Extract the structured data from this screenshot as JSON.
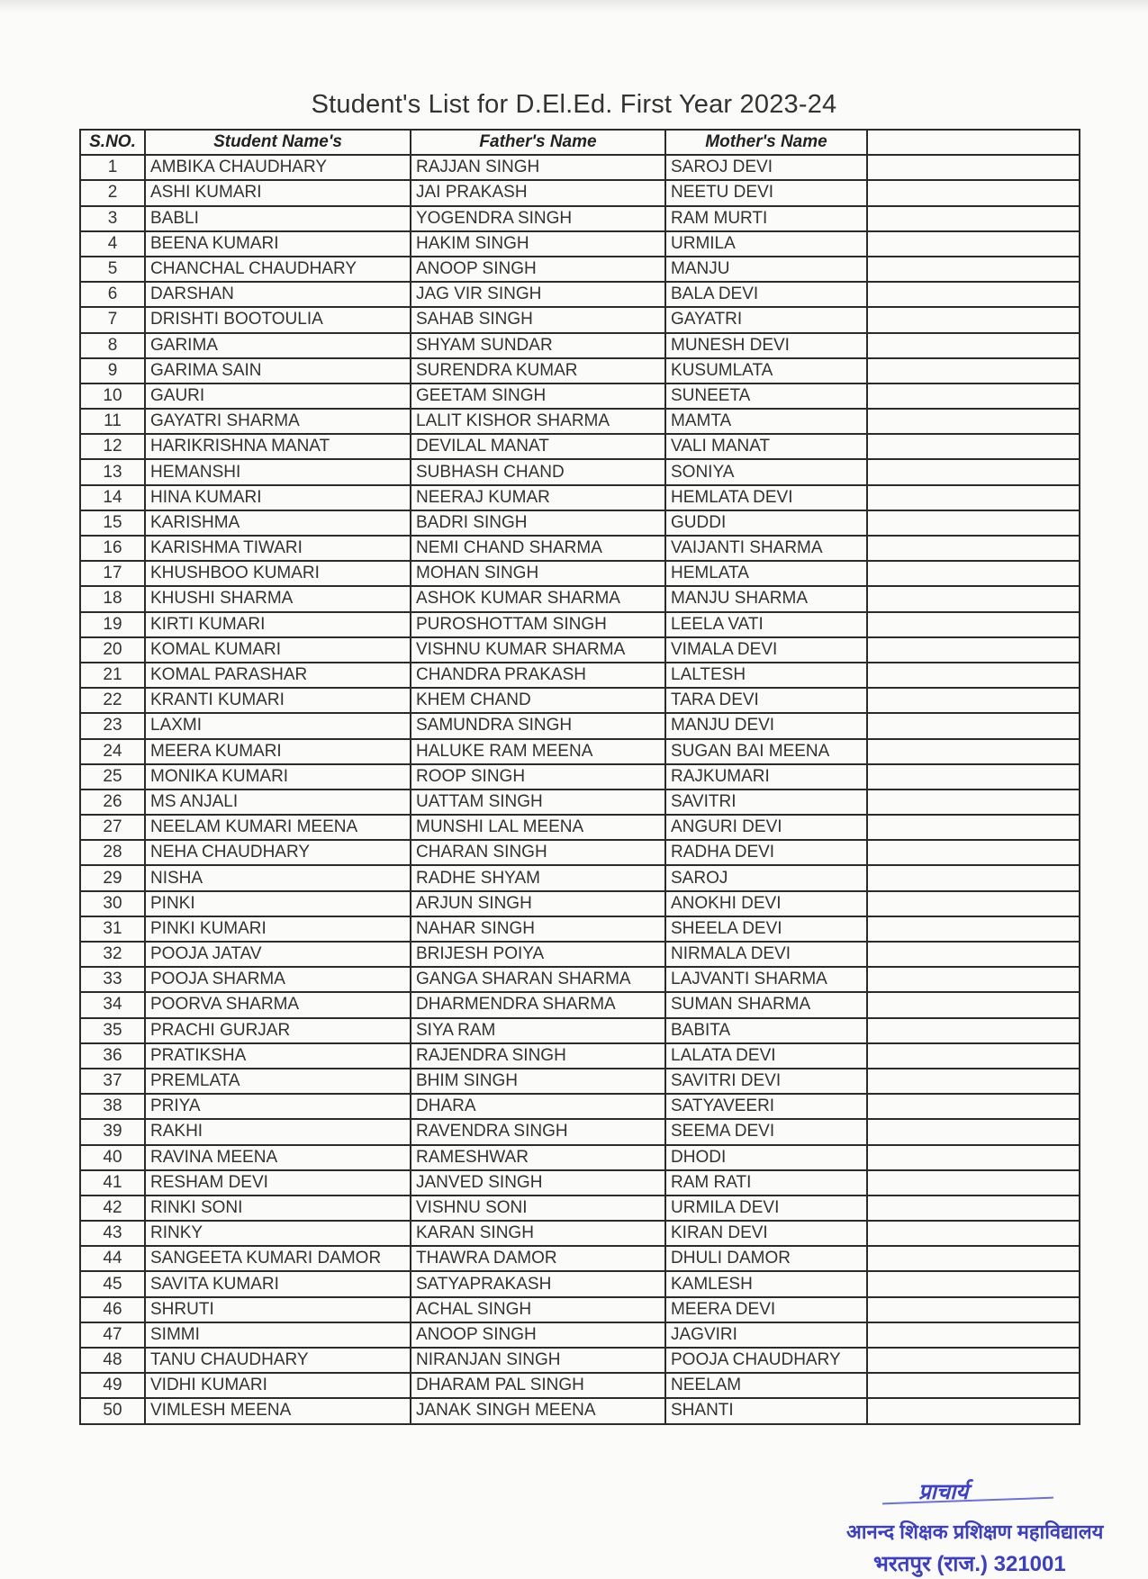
{
  "title": "Student's List for D.El.Ed. First Year 2023-24",
  "table": {
    "headers": [
      "S.NO.",
      "Student Name's",
      "Father's Name",
      "Mother's Name",
      ""
    ],
    "rows": [
      [
        "1",
        "AMBIKA CHAUDHARY",
        "RAJJAN SINGH",
        "SAROJ DEVI"
      ],
      [
        "2",
        "ASHI KUMARI",
        "JAI PRAKASH",
        "NEETU DEVI"
      ],
      [
        "3",
        "BABLI",
        "YOGENDRA SINGH",
        "RAM MURTI"
      ],
      [
        "4",
        "BEENA KUMARI",
        "HAKIM SINGH",
        "URMILA"
      ],
      [
        "5",
        "CHANCHAL CHAUDHARY",
        "ANOOP SINGH",
        "MANJU"
      ],
      [
        "6",
        "DARSHAN",
        "JAG VIR SINGH",
        "BALA DEVI"
      ],
      [
        "7",
        "DRISHTI BOOTOULIA",
        "SAHAB SINGH",
        "GAYATRI"
      ],
      [
        "8",
        "GARIMA",
        "SHYAM SUNDAR",
        "MUNESH DEVI"
      ],
      [
        "9",
        "GARIMA SAIN",
        "SURENDRA KUMAR",
        "KUSUMLATA"
      ],
      [
        "10",
        "GAURI",
        "GEETAM SINGH",
        "SUNEETA"
      ],
      [
        "11",
        "GAYATRI SHARMA",
        "LALIT KISHOR SHARMA",
        "MAMTA"
      ],
      [
        "12",
        "HARIKRISHNA MANAT",
        "DEVILAL MANAT",
        "VALI MANAT"
      ],
      [
        "13",
        "HEMANSHI",
        "SUBHASH CHAND",
        "SONIYA"
      ],
      [
        "14",
        "HINA KUMARI",
        "NEERAJ KUMAR",
        "HEMLATA DEVI"
      ],
      [
        "15",
        "KARISHMA",
        "BADRI SINGH",
        "GUDDI"
      ],
      [
        "16",
        "KARISHMA TIWARI",
        "NEMI CHAND SHARMA",
        "VAIJANTI SHARMA"
      ],
      [
        "17",
        "KHUSHBOO KUMARI",
        "MOHAN SINGH",
        "HEMLATA"
      ],
      [
        "18",
        "KHUSHI SHARMA",
        "ASHOK KUMAR SHARMA",
        "MANJU SHARMA"
      ],
      [
        "19",
        "KIRTI KUMARI",
        "PUROSHOTTAM SINGH",
        "LEELA VATI"
      ],
      [
        "20",
        "KOMAL KUMARI",
        "VISHNU KUMAR SHARMA",
        "VIMALA DEVI"
      ],
      [
        "21",
        "KOMAL PARASHAR",
        "CHANDRA PRAKASH",
        "LALTESH"
      ],
      [
        "22",
        "KRANTI KUMARI",
        "KHEM CHAND",
        "TARA DEVI"
      ],
      [
        "23",
        "LAXMI",
        "SAMUNDRA SINGH",
        "MANJU DEVI"
      ],
      [
        "24",
        "MEERA KUMARI",
        "HALUKE RAM MEENA",
        "SUGAN BAI MEENA"
      ],
      [
        "25",
        "MONIKA KUMARI",
        "ROOP SINGH",
        "RAJKUMARI"
      ],
      [
        "26",
        "MS ANJALI",
        "UATTAM SINGH",
        "SAVITRI"
      ],
      [
        "27",
        "NEELAM KUMARI MEENA",
        "MUNSHI LAL MEENA",
        "ANGURI DEVI"
      ],
      [
        "28",
        "NEHA CHAUDHARY",
        "CHARAN SINGH",
        "RADHA DEVI"
      ],
      [
        "29",
        "NISHA",
        "RADHE SHYAM",
        "SAROJ"
      ],
      [
        "30",
        "PINKI",
        "ARJUN SINGH",
        "ANOKHI DEVI"
      ],
      [
        "31",
        "PINKI KUMARI",
        "NAHAR SINGH",
        "SHEELA DEVI"
      ],
      [
        "32",
        "POOJA JATAV",
        "BRIJESH POIYA",
        "NIRMALA DEVI"
      ],
      [
        "33",
        "POOJA SHARMA",
        "GANGA SHARAN SHARMA",
        "LAJVANTI SHARMA"
      ],
      [
        "34",
        "POORVA SHARMA",
        "DHARMENDRA SHARMA",
        "SUMAN SHARMA"
      ],
      [
        "35",
        "PRACHI GURJAR",
        "SIYA RAM",
        "BABITA"
      ],
      [
        "36",
        "PRATIKSHA",
        "RAJENDRA SINGH",
        "LALATA DEVI"
      ],
      [
        "37",
        "PREMLATA",
        "BHIM SINGH",
        "SAVITRI DEVI"
      ],
      [
        "38",
        "PRIYA",
        "DHARA",
        "SATYAVEERI"
      ],
      [
        "39",
        "RAKHI",
        "RAVENDRA SINGH",
        "SEEMA DEVI"
      ],
      [
        "40",
        "RAVINA MEENA",
        "RAMESHWAR",
        "DHODI"
      ],
      [
        "41",
        "RESHAM DEVI",
        "JANVED SINGH",
        "RAM RATI"
      ],
      [
        "42",
        "RINKI SONI",
        "VISHNU SONI",
        "URMILA DEVI"
      ],
      [
        "43",
        "RINKY",
        "KARAN SINGH",
        "KIRAN DEVI"
      ],
      [
        "44",
        "SANGEETA KUMARI DAMOR",
        "THAWRA DAMOR",
        "DHULI DAMOR"
      ],
      [
        "45",
        "SAVITA KUMARI",
        "SATYAPRAKASH",
        "KAMLESH"
      ],
      [
        "46",
        "SHRUTI",
        "ACHAL SINGH",
        "MEERA DEVI"
      ],
      [
        "47",
        "SIMMI",
        "ANOOP SINGH",
        "JAGVIRI"
      ],
      [
        "48",
        "TANU CHAUDHARY",
        "NIRANJAN SINGH",
        "POOJA CHAUDHARY"
      ],
      [
        "49",
        "VIDHI KUMARI",
        "DHARAM PAL SINGH",
        "NEELAM"
      ],
      [
        "50",
        "VIMLESH MEENA",
        "JANAK SINGH MEENA",
        "SHANTI"
      ]
    ]
  },
  "stamp": {
    "signature": "प्राचार्य",
    "line1": "आनन्द शिक्षक प्रशिक्षण महाविद्यालय",
    "line2": "भरतपुर (राज.) 321001",
    "color": "#3b3fc8"
  }
}
